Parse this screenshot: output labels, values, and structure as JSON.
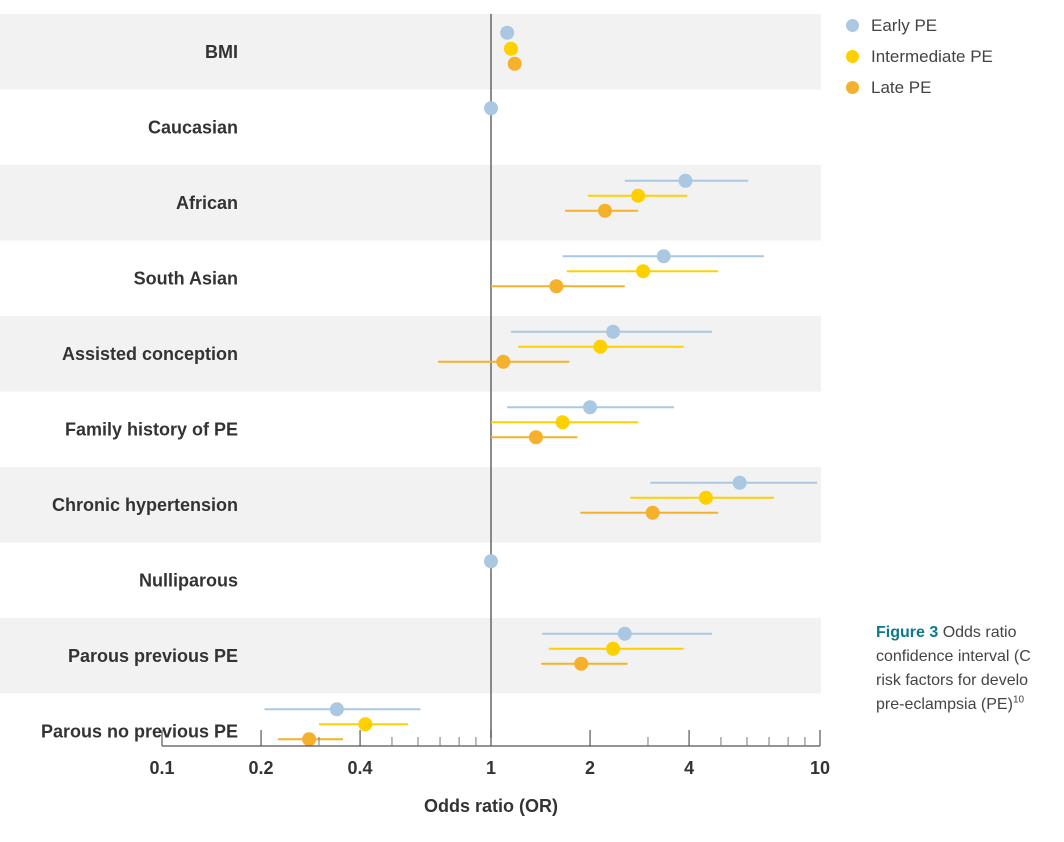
{
  "chart_data": {
    "type": "scatter",
    "xlabel": "Odds ratio (OR)",
    "x_scale": "log",
    "xlim": [
      0.1,
      10
    ],
    "xticks": [
      0.1,
      0.2,
      0.4,
      1,
      2,
      4,
      10
    ],
    "xtick_labels": [
      "0.1",
      "0.2",
      "0.4",
      "1",
      "2",
      "4",
      "10"
    ],
    "reference_line": 1,
    "categories": [
      "BMI",
      "Caucasian",
      "African",
      "South Asian",
      "Assisted conception",
      "Family history of PE",
      "Chronic hypertension",
      "Nulliparous",
      "Parous previous PE",
      "Parous no previous PE"
    ],
    "series": [
      {
        "name": "Early PE",
        "color": "#aac8e2",
        "or": [
          1.12,
          1.0,
          3.9,
          3.35,
          2.35,
          2.0,
          5.7,
          1.0,
          2.55,
          0.34
        ],
        "ci_low": [
          null,
          null,
          2.55,
          1.65,
          1.15,
          1.12,
          3.05,
          null,
          1.43,
          0.205
        ],
        "ci_high": [
          null,
          null,
          6.05,
          6.75,
          4.7,
          3.6,
          9.8,
          null,
          4.7,
          0.61
        ]
      },
      {
        "name": "Intermediate PE",
        "color": "#ffd000",
        "or": [
          1.15,
          null,
          2.8,
          2.9,
          2.15,
          1.65,
          4.5,
          null,
          2.35,
          0.415
        ],
        "ci_low": [
          null,
          null,
          1.97,
          1.7,
          1.21,
          1.0,
          2.65,
          null,
          1.5,
          0.3
        ],
        "ci_high": [
          null,
          null,
          3.95,
          4.9,
          3.85,
          2.8,
          7.25,
          null,
          3.85,
          0.56
        ]
      },
      {
        "name": "Late PE",
        "color": "#f5b12b",
        "or": [
          1.18,
          null,
          2.22,
          1.58,
          1.09,
          1.37,
          3.1,
          null,
          1.88,
          0.28
        ],
        "ci_low": [
          null,
          null,
          1.68,
          1.0,
          0.69,
          1.0,
          1.87,
          null,
          1.42,
          0.225
        ],
        "ci_high": [
          null,
          null,
          2.8,
          2.55,
          1.73,
          1.83,
          4.9,
          null,
          2.6,
          0.355
        ]
      }
    ],
    "legend_position": "top-right",
    "grid": false
  },
  "caption": {
    "figure_label": "Figure 3",
    "lines": [
      "Odds ratio",
      "confidence interval (C",
      "risk factors for develo",
      "pre-eclampsia (PE)"
    ],
    "superscript": "10"
  }
}
